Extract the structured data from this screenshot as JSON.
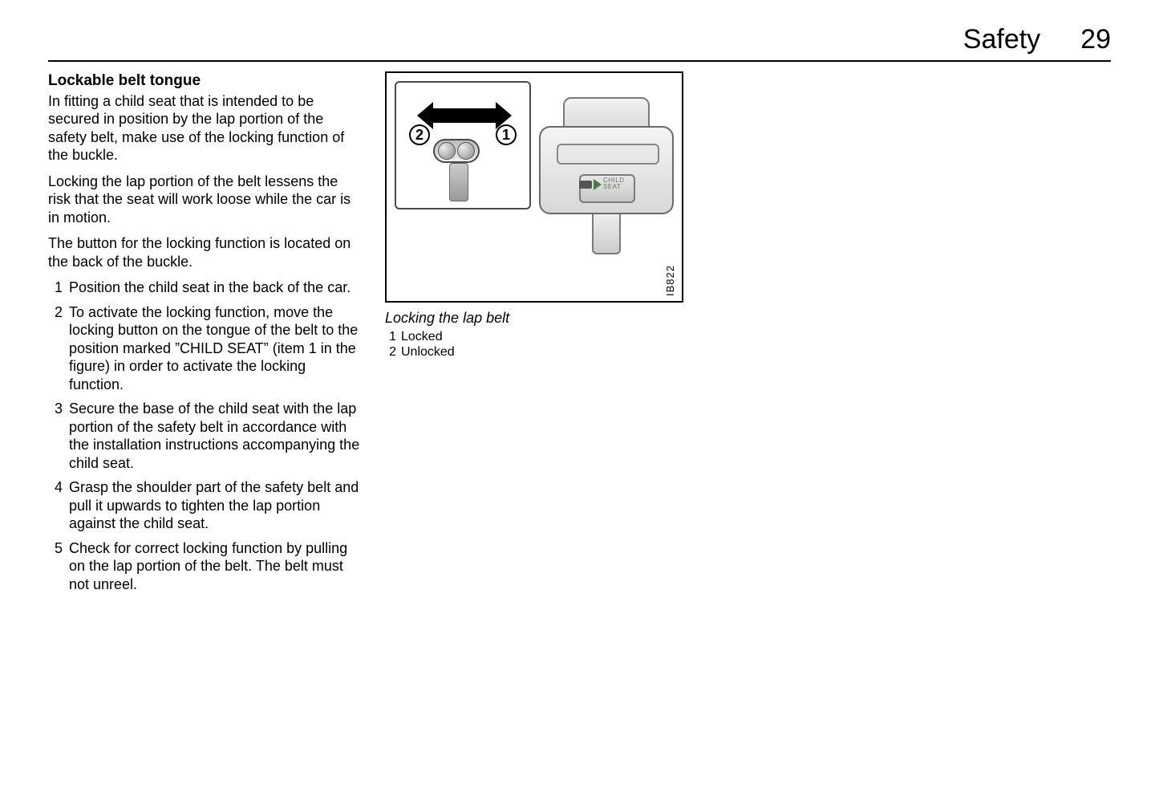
{
  "header": {
    "title": "Safety",
    "page": "29"
  },
  "left": {
    "subhead": "Lockable belt tongue",
    "p1": "In fitting a child seat that is intended to be secured in position by the lap portion of the safety belt, make use of the locking function of the buckle.",
    "p2": "Locking the lap portion of the belt lessens the risk that the seat will work loose while the car is in motion.",
    "p3": "The button for the locking function is located on the back of the buckle.",
    "steps": [
      "Position the child seat in the back of the car.",
      "To activate the locking function, move the locking button on the tongue of the belt to the position marked ”CHILD SEAT” (item 1 in the figure) in order to activate the locking function.",
      "Secure the base of the child seat with the lap portion of the safety belt in accordance with the installation instructions accompanying the child seat.",
      "Grasp the shoulder part of the safety belt and pull it upwards to tighten the lap portion against the child seat.",
      "Check for correct locking function by pulling on the lap portion of the belt. The belt must not unreel."
    ]
  },
  "figure": {
    "label_1": "1",
    "label_2": "2",
    "small_label_line1": "CHILD",
    "small_label_line2": "SEAT",
    "id": "IB822",
    "caption": "Locking the lap belt",
    "legend": [
      {
        "n": "1",
        "t": "Locked"
      },
      {
        "n": "2",
        "t": "Unlocked"
      }
    ],
    "colors": {
      "border": "#000000",
      "line": "#6a6a6a",
      "fill_light": "#f2f2f2",
      "fill_mid": "#d8d8d8",
      "green": "#4a7a4a"
    }
  }
}
